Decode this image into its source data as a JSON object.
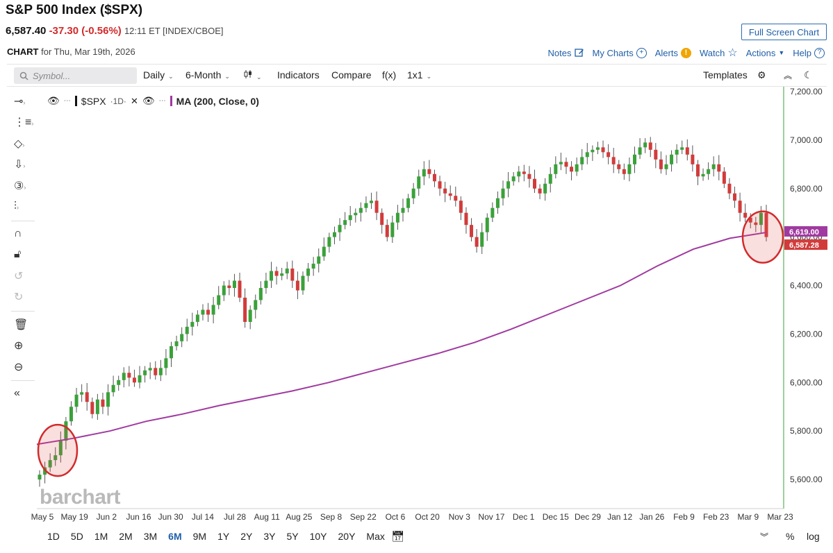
{
  "header": {
    "title": "S&P 500 Index ($SPX)",
    "price": "6,587.40",
    "change": "-37.30 (-0.56%)",
    "meta": "12:11 ET [INDEX/CBOE]",
    "full_screen": "Full Screen Chart",
    "chart_label": "CHART",
    "chart_for": "for Thu, Mar 19th, 2026"
  },
  "actions": {
    "notes": "Notes",
    "my_charts": "My Charts",
    "alerts": "Alerts",
    "watch": "Watch",
    "actions": "Actions",
    "help": "Help"
  },
  "toolbar": {
    "symbol_placeholder": "Symbol...",
    "period": "Daily",
    "range": "6-Month",
    "indicators": "Indicators",
    "compare": "Compare",
    "fx": "f(x)",
    "layout": "1x1",
    "templates": "Templates"
  },
  "legend": {
    "symbol": "$SPX",
    "interval": "·1D·",
    "ma": "MA (200, Close, 0)"
  },
  "watermark": "barchart",
  "ranges": [
    "1D",
    "5D",
    "1M",
    "2M",
    "3M",
    "6M",
    "9M",
    "1Y",
    "2Y",
    "3Y",
    "5Y",
    "10Y",
    "20Y",
    "Max"
  ],
  "active_range": "6M",
  "bottom": {
    "percent": "%",
    "log": "log"
  },
  "colors": {
    "up": "#3aa13a",
    "down": "#d23b3b",
    "ma": "#a03aa0",
    "accent": "#1f5fa8"
  },
  "chart_data": {
    "type": "candlestick",
    "title": "S&P 500 Index ($SPX) Daily",
    "ylim": [
      5480,
      7220
    ],
    "y_ticks": [
      5600,
      5800,
      6000,
      6200,
      6400,
      6600,
      6800,
      7000,
      7200
    ],
    "y_tick_labels": [
      "5,600.00",
      "5,800.00",
      "6,000.00",
      "6,200.00",
      "6,400.00",
      "6,600.00",
      "6,800.00",
      "7,000.00",
      "7,200.00"
    ],
    "x_tick_labels": [
      "May 5",
      "May 19",
      "Jun 2",
      "Jun 16",
      "Jun 30",
      "Jul 14",
      "Jul 28",
      "Aug 11",
      "Aug 25",
      "Sep 8",
      "Sep 22",
      "Oct 6",
      "Oct 20",
      "Nov 3",
      "Nov 17",
      "Dec 1",
      "Dec 15",
      "Dec 29",
      "Jan 12",
      "Jan 26",
      "Feb 9",
      "Feb 23",
      "Mar 9",
      "Mar 23"
    ],
    "price_close": [
      5620,
      5650,
      5680,
      5700,
      5760,
      5840,
      5900,
      5950,
      5960,
      5920,
      5870,
      5930,
      5900,
      5960,
      5990,
      6010,
      6040,
      6020,
      6000,
      6030,
      6050,
      6060,
      6030,
      6060,
      6100,
      6150,
      6170,
      6200,
      6230,
      6250,
      6280,
      6300,
      6280,
      6320,
      6360,
      6400,
      6390,
      6420,
      6350,
      6250,
      6300,
      6340,
      6390,
      6420,
      6460,
      6440,
      6450,
      6470,
      6420,
      6380,
      6440,
      6470,
      6490,
      6520,
      6560,
      6600,
      6620,
      6650,
      6670,
      6690,
      6700,
      6720,
      6740,
      6750,
      6700,
      6650,
      6600,
      6660,
      6700,
      6720,
      6760,
      6800,
      6850,
      6880,
      6860,
      6830,
      6800,
      6780,
      6770,
      6750,
      6700,
      6650,
      6600,
      6560,
      6620,
      6680,
      6720,
      6760,
      6800,
      6830,
      6850,
      6870,
      6860,
      6840,
      6800,
      6780,
      6820,
      6860,
      6900,
      6910,
      6890,
      6870,
      6900,
      6930,
      6950,
      6960,
      6970,
      6950,
      6930,
      6900,
      6880,
      6860,
      6900,
      6940,
      6970,
      6990,
      6960,
      6920,
      6880,
      6900,
      6940,
      6960,
      6970,
      6940,
      6900,
      6850,
      6860,
      6880,
      6900,
      6870,
      6820,
      6780,
      6750,
      6700,
      6680,
      6660,
      6650,
      6700,
      6600
    ],
    "ma_200": [
      5745,
      5770,
      5800,
      5840,
      5870,
      5905,
      5935,
      5965,
      6000,
      6040,
      6080,
      6120,
      6165,
      6220,
      6280,
      6340,
      6400,
      6480,
      6550,
      6595,
      6619
    ]
  }
}
